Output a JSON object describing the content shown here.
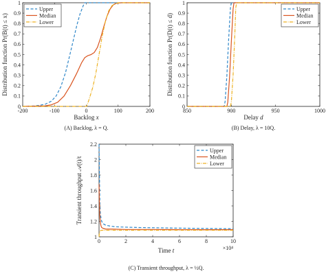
{
  "series_styles": [
    {
      "key": "upper",
      "color": "#2e86c8",
      "dash": "4,2.5",
      "width": 1.2
    },
    {
      "key": "median",
      "color": "#d9531e",
      "dash": "",
      "width": 1.2
    },
    {
      "key": "lower",
      "color": "#edb120",
      "dash": "5,1.5,1,1.5",
      "width": 1.2
    }
  ],
  "chart_data": [
    {
      "type": "line",
      "caption": "(A) Backlog, λ = Q.",
      "xlabel_text": "Backlog ",
      "xlabel_var": "x",
      "ylabel": "Distribution function Pr(B(t) ≤ x)",
      "xlim": [
        -200,
        200
      ],
      "ylim": [
        0,
        1
      ],
      "xticks": [
        -200,
        -100,
        0,
        100,
        200
      ],
      "yticks": [
        0,
        0.1,
        0.2,
        0.3,
        0.4,
        0.5,
        0.6,
        0.7,
        0.8,
        0.9,
        1
      ],
      "legend_position": "top-left",
      "series": [
        {
          "name": "Upper",
          "x": [
            -200,
            -160,
            -130,
            -110,
            -95,
            -80,
            -65,
            -50,
            -40,
            -30,
            -20,
            -10,
            -5,
            200
          ],
          "y": [
            0,
            0.005,
            0.02,
            0.05,
            0.1,
            0.19,
            0.33,
            0.52,
            0.65,
            0.78,
            0.89,
            0.97,
            1,
            1
          ]
        },
        {
          "name": "Median",
          "x": [
            -200,
            -130,
            -110,
            -90,
            -70,
            -50,
            -30,
            -15,
            -5,
            0,
            5,
            15,
            25,
            35,
            45,
            55,
            65,
            75,
            85,
            95,
            110,
            200
          ],
          "y": [
            0,
            0.005,
            0.015,
            0.04,
            0.1,
            0.2,
            0.32,
            0.42,
            0.47,
            0.48,
            0.49,
            0.5,
            0.52,
            0.57,
            0.66,
            0.77,
            0.87,
            0.94,
            0.98,
            0.995,
            1,
            1
          ]
        },
        {
          "name": "Lower",
          "x": [
            -200,
            0,
            2,
            10,
            20,
            30,
            40,
            50,
            60,
            70,
            80,
            90,
            100,
            200
          ],
          "y": [
            0,
            0,
            0.005,
            0.08,
            0.18,
            0.32,
            0.5,
            0.68,
            0.82,
            0.92,
            0.97,
            0.99,
            1,
            1
          ]
        }
      ]
    },
    {
      "type": "line",
      "caption": "(B) Delay, λ = 10Q.",
      "xlabel_text": "Delay ",
      "xlabel_var": "d",
      "ylabel": "Distribution function Pr(D(t) ≤ d)",
      "xlim": [
        850,
        1000
      ],
      "ylim": [
        0,
        1
      ],
      "xticks": [
        850,
        900,
        950,
        1000
      ],
      "yticks": [
        0,
        0.1,
        0.2,
        0.3,
        0.4,
        0.5,
        0.6,
        0.7,
        0.8,
        0.9,
        1
      ],
      "legend_position": "top-right",
      "series": [
        {
          "name": "Upper",
          "x": [
            850,
            892,
            893,
            895,
            897,
            899,
            900,
            1000
          ],
          "y": [
            0,
            0,
            0.05,
            0.3,
            0.65,
            0.95,
            1,
            1
          ]
        },
        {
          "name": "Median",
          "x": [
            850,
            895,
            896,
            898,
            900,
            902,
            903,
            1000
          ],
          "y": [
            0,
            0,
            0.04,
            0.28,
            0.62,
            0.94,
            1,
            1
          ]
        },
        {
          "name": "Lower",
          "x": [
            850,
            899,
            900,
            902,
            904,
            905,
            906,
            1000
          ],
          "y": [
            0,
            0,
            0.04,
            0.3,
            0.7,
            0.95,
            1,
            1
          ]
        }
      ]
    },
    {
      "type": "line",
      "caption": "(C) Transient throughput, λ = ½Q.",
      "xlabel_text": "Time ",
      "xlabel_var": "t",
      "ylabel": "Transient throughput 𝒜(t)/t",
      "x_exponent": "×10⁴",
      "xlim": [
        0,
        10
      ],
      "ylim": [
        1,
        2.2
      ],
      "xticks": [
        0,
        2,
        4,
        6,
        8,
        10
      ],
      "yticks": [
        1,
        1.2,
        1.4,
        1.6,
        1.8,
        2,
        2.2
      ],
      "legend_position": "top-right",
      "series": [
        {
          "name": "Upper",
          "x": [
            0,
            0.03,
            0.06,
            0.1,
            0.15,
            0.2,
            0.3,
            0.5,
            0.8,
            1.2,
            2,
            3,
            5,
            7,
            10
          ],
          "y": [
            2.2,
            1.8,
            1.45,
            1.3,
            1.24,
            1.2,
            1.17,
            1.15,
            1.14,
            1.13,
            1.125,
            1.12,
            1.115,
            1.11,
            1.105
          ]
        },
        {
          "name": "Median",
          "x": [
            0,
            0.02,
            0.05,
            0.1,
            0.15,
            0.2,
            0.3,
            0.5,
            1,
            2,
            4,
            6,
            8,
            10
          ],
          "y": [
            1.68,
            1.5,
            1.3,
            1.18,
            1.14,
            1.12,
            1.11,
            1.1,
            1.1,
            1.095,
            1.095,
            1.093,
            1.092,
            1.092
          ]
        },
        {
          "name": "Lower",
          "x": [
            0,
            0.02,
            0.05,
            0.1,
            0.2,
            0.5,
            1,
            2,
            4,
            6,
            8,
            10
          ],
          "y": [
            1.0,
            1.04,
            1.07,
            1.08,
            1.085,
            1.085,
            1.085,
            1.085,
            1.085,
            1.085,
            1.085,
            1.085
          ]
        }
      ]
    }
  ]
}
